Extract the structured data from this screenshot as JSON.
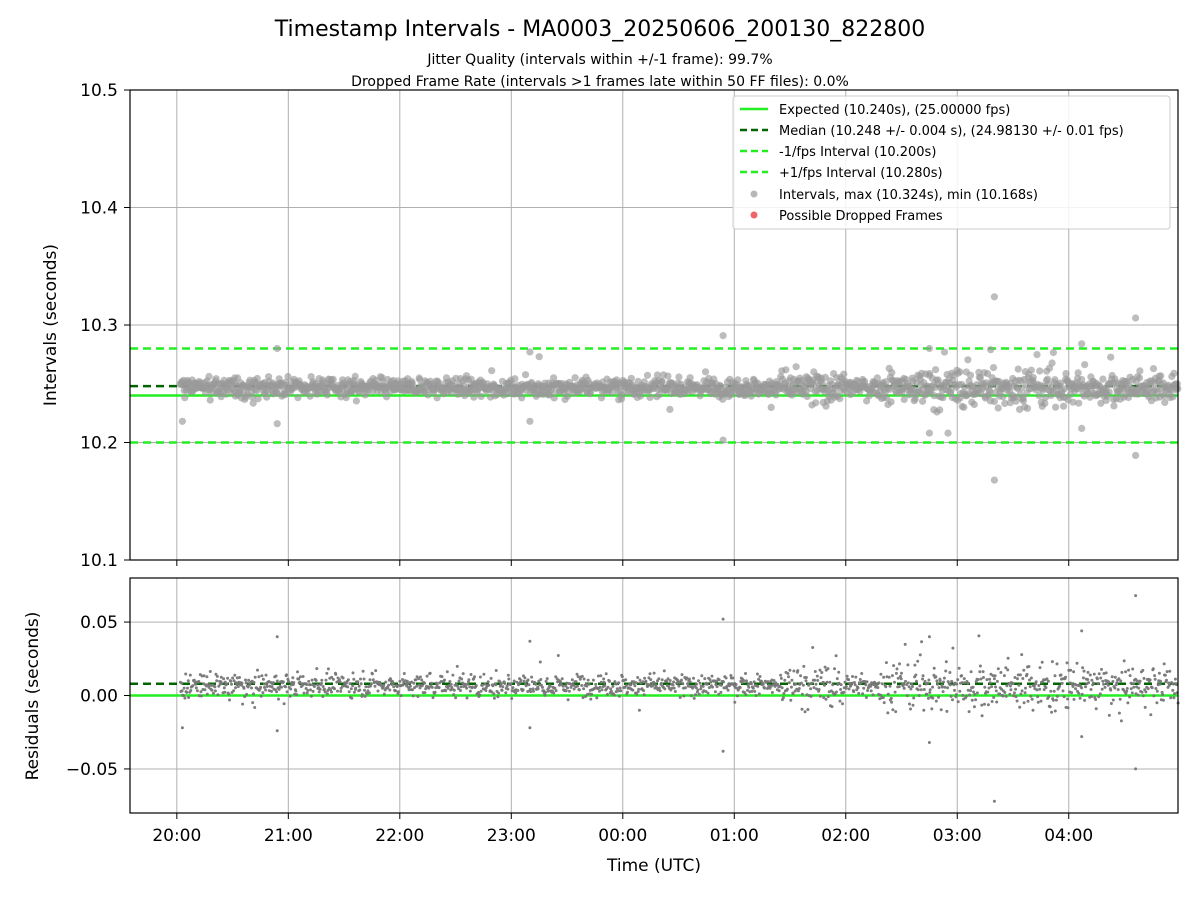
{
  "figure": {
    "title": "Timestamp Intervals - MA0003_20250606_200130_822800",
    "subtitle_1": "Jitter Quality (intervals within +/-1 frame): 99.7%",
    "subtitle_2": "Dropped Frame Rate (intervals >1 frames late within 50 FF files): 0.0%"
  },
  "colors": {
    "expected": "#22ee22",
    "median": "#006400",
    "interval_bounds": "#22ee22",
    "points": "#999999",
    "residual_points": "#777777",
    "dropped": "#ee5555",
    "grid": "#b0b0b0"
  },
  "chart_data": [
    {
      "type": "scatter",
      "panel": "top",
      "ylabel": "Intervals (seconds)",
      "ylim": [
        10.1,
        10.5
      ],
      "yticks": [
        10.1,
        10.2,
        10.3,
        10.4,
        10.5
      ],
      "ytick_labels": [
        "10.1",
        "10.2",
        "10.3",
        "10.4",
        "10.5"
      ],
      "xlim_hours": [
        19.58,
        28.98
      ],
      "grid": true,
      "legend_placement": "top-right",
      "lines": [
        {
          "name": "Expected (10.240s), (25.00000 fps)",
          "y": 10.24,
          "style": "solid",
          "color_key": "expected"
        },
        {
          "name": "Median (10.248 +/- 0.004 s), (24.98130 +/- 0.01 fps)",
          "y": 10.248,
          "style": "dashed",
          "color_key": "median"
        },
        {
          "name": "-1/fps Interval (10.200s)",
          "y": 10.2,
          "style": "dashed",
          "color_key": "interval_bounds"
        },
        {
          "name": "+1/fps Interval (10.280s)",
          "y": 10.28,
          "style": "dashed",
          "color_key": "interval_bounds"
        }
      ],
      "series": [
        {
          "name": "Intervals, max (10.324s), min (10.168s)",
          "marker": "circle",
          "color_key": "points",
          "typical_center": 10.247,
          "typical_spread": 0.0055,
          "outliers": [
            {
              "x": "20:03",
              "y": 10.218
            },
            {
              "x": "20:54",
              "y": 10.28
            },
            {
              "x": "20:54",
              "y": 10.216
            },
            {
              "x": "23:10",
              "y": 10.277
            },
            {
              "x": "23:10",
              "y": 10.218
            },
            {
              "x": "23:15",
              "y": 10.273
            },
            {
              "x": "00:54",
              "y": 10.291
            },
            {
              "x": "00:54",
              "y": 10.202
            },
            {
              "x": "02:45",
              "y": 10.28
            },
            {
              "x": "02:45",
              "y": 10.208
            },
            {
              "x": "02:55",
              "y": 10.208
            },
            {
              "x": "03:18",
              "y": 10.279
            },
            {
              "x": "03:20",
              "y": 10.324
            },
            {
              "x": "03:20",
              "y": 10.168
            },
            {
              "x": "04:07",
              "y": 10.284
            },
            {
              "x": "04:07",
              "y": 10.212
            },
            {
              "x": "04:36",
              "y": 10.306
            },
            {
              "x": "04:36",
              "y": 10.189
            }
          ]
        },
        {
          "name": "Possible Dropped Frames",
          "marker": "circle",
          "color_key": "dropped",
          "points": []
        }
      ]
    },
    {
      "type": "scatter",
      "panel": "bottom",
      "ylabel": "Residuals (seconds)",
      "xlabel": "Time (UTC)",
      "ylim": [
        -0.08,
        0.08
      ],
      "yticks": [
        -0.05,
        0.0,
        0.05
      ],
      "ytick_labels": [
        "−0.05",
        "0.00",
        "0.05"
      ],
      "xlim_hours": [
        19.58,
        28.98
      ],
      "xticks_hours": [
        20,
        21,
        22,
        23,
        24,
        25,
        26,
        27,
        28
      ],
      "xtick_labels": [
        "20:00",
        "21:00",
        "22:00",
        "23:00",
        "00:00",
        "01:00",
        "02:00",
        "03:00",
        "04:00"
      ],
      "grid": true,
      "lines": [
        {
          "y": 0.0,
          "style": "solid",
          "color_key": "expected"
        },
        {
          "y": 0.008,
          "style": "dashed",
          "color_key": "median"
        }
      ],
      "series": [
        {
          "name": "Residuals",
          "marker": "dot",
          "color_key": "residual_points",
          "typical_center": 0.007,
          "typical_spread": 0.0055,
          "outliers": [
            {
              "x": "20:03",
              "y": -0.022
            },
            {
              "x": "20:54",
              "y": 0.04
            },
            {
              "x": "20:54",
              "y": -0.024
            },
            {
              "x": "23:10",
              "y": 0.037
            },
            {
              "x": "23:10",
              "y": -0.022
            },
            {
              "x": "00:54",
              "y": 0.052
            },
            {
              "x": "00:54",
              "y": -0.038
            },
            {
              "x": "02:45",
              "y": 0.04
            },
            {
              "x": "02:45",
              "y": -0.032
            },
            {
              "x": "03:20",
              "y": -0.072
            },
            {
              "x": "04:07",
              "y": 0.044
            },
            {
              "x": "04:07",
              "y": -0.028
            },
            {
              "x": "04:36",
              "y": 0.068
            },
            {
              "x": "04:36",
              "y": -0.05
            }
          ]
        }
      ]
    }
  ]
}
